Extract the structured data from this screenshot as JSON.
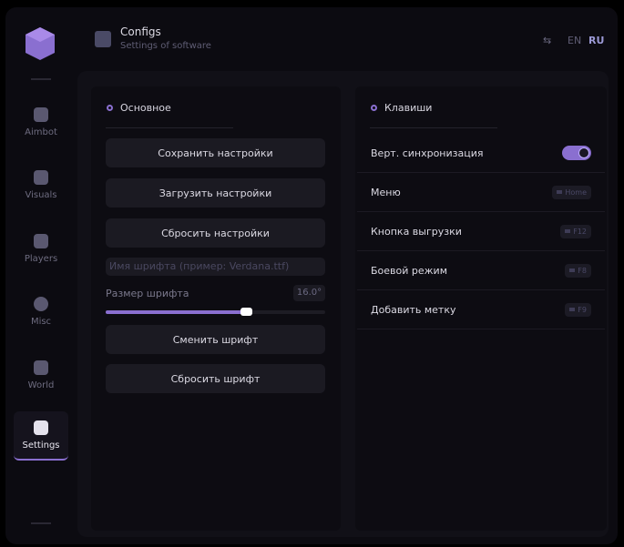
{
  "header": {
    "title": "Configs",
    "subtitle": "Settings of software",
    "lang": [
      "EN",
      "RU"
    ],
    "active_lang": "RU"
  },
  "sidebar": {
    "items": [
      {
        "label": "Aimbot",
        "icon": "skull-icon"
      },
      {
        "label": "Visuals",
        "icon": "vr-glasses-icon"
      },
      {
        "label": "Players",
        "icon": "players-icon"
      },
      {
        "label": "Misc",
        "icon": "misc-icon"
      },
      {
        "label": "World",
        "icon": "briefcase-icon"
      },
      {
        "label": "Settings",
        "icon": "list-icon",
        "active": true
      }
    ]
  },
  "main": {
    "title": "Основное",
    "buttons": [
      "Сохранить настройки",
      "Загрузить настройки",
      "Сбросить настройки"
    ],
    "font_input_placeholder": "Имя шрифта (пример: Verdana.ttf)",
    "font_size_label": "Размер шрифта",
    "font_size_value": "16.0°",
    "font_size_fraction": 0.64,
    "font_buttons": [
      "Сменить шрифт",
      "Сбросить шрифт"
    ]
  },
  "keys": {
    "title": "Клавиши",
    "vsync_label": "Верт. синхронизация",
    "vsync_on": true,
    "rows": [
      {
        "label": "Меню",
        "key": "Home"
      },
      {
        "label": "Кнопка выгрузки",
        "key": "F12"
      },
      {
        "label": "Боевой режим",
        "key": "F8"
      },
      {
        "label": "Добавить метку",
        "key": "F9"
      }
    ]
  },
  "colors": {
    "accent": "#8a6fd0",
    "bg": "#0c0b11"
  }
}
